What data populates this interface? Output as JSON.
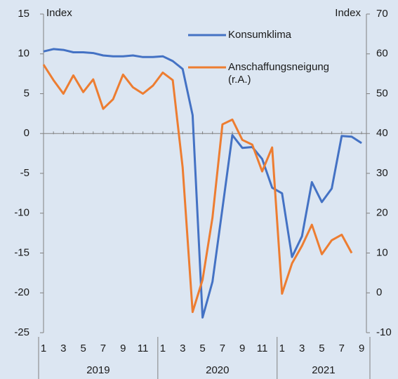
{
  "chart_data": {
    "type": "line",
    "y_label": "Index",
    "y2_label": "Index",
    "categories": [
      "1",
      null,
      "3",
      null,
      "5",
      null,
      "7",
      null,
      "9",
      null,
      "11",
      null,
      "1",
      null,
      "3",
      null,
      "5",
      null,
      "7",
      null,
      "9",
      null,
      "11",
      null,
      "1",
      null,
      "3",
      null,
      "5",
      null,
      "7",
      null,
      "9"
    ],
    "year_groups": [
      "2019",
      "2020",
      "2021"
    ],
    "series": [
      {
        "name": "Konsumklima",
        "color": "#4472c4",
        "values": [
          10.3,
          10.6,
          10.5,
          10.2,
          10.2,
          10.1,
          9.8,
          9.7,
          9.7,
          9.8,
          9.6,
          9.6,
          9.7,
          9.1,
          8.1,
          2.3,
          -23.1,
          -18.6,
          -9.4,
          -0.2,
          -1.8,
          -1.7,
          -3.2,
          -6.8,
          -7.5,
          -15.5,
          -12.9,
          -6.1,
          -8.6,
          -6.9,
          -0.3,
          -0.4,
          -1.2
        ]
      },
      {
        "name": "Anschaffungsneigung (r.A.)",
        "color": "#ed7d31",
        "axis": "y2",
        "values": [
          57.3,
          53.4,
          50,
          54.6,
          50.4,
          53.6,
          46.2,
          48.6,
          54.8,
          51.6,
          50,
          52,
          55.3,
          53.4,
          31.5,
          -4.8,
          3.3,
          18.9,
          42.3,
          43.5,
          38.4,
          37.2,
          30.5,
          36.5,
          -0.2,
          7.4,
          11.8,
          17.1,
          9.7,
          13.2,
          14.6,
          10,
          null
        ]
      }
    ],
    "ylim": [
      -25,
      15
    ],
    "yticks": [
      -25,
      -20,
      -15,
      -10,
      -5,
      0,
      5,
      10,
      15
    ],
    "y2lim": [
      -10,
      70
    ],
    "y2ticks": [
      -10,
      0,
      10,
      20,
      30,
      40,
      50,
      60,
      70
    ]
  }
}
